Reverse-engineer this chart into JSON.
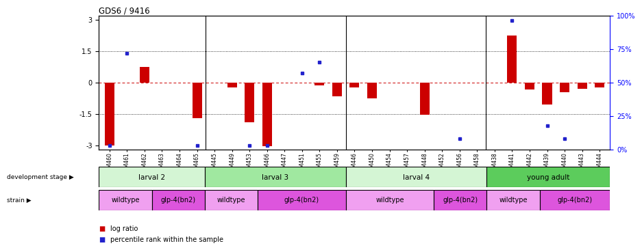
{
  "title": "GDS6 / 9416",
  "samples": [
    "GSM460",
    "GSM461",
    "GSM462",
    "GSM463",
    "GSM464",
    "GSM465",
    "GSM445",
    "GSM449",
    "GSM453",
    "GSM466",
    "GSM447",
    "GSM451",
    "GSM455",
    "GSM459",
    "GSM446",
    "GSM450",
    "GSM454",
    "GSM457",
    "GSM448",
    "GSM452",
    "GSM456",
    "GSM458",
    "GSM438",
    "GSM441",
    "GSM442",
    "GSM439",
    "GSM440",
    "GSM443",
    "GSM444"
  ],
  "log_ratio": [
    -3.0,
    0.0,
    0.75,
    0.0,
    0.0,
    -1.7,
    0.0,
    -0.25,
    -1.9,
    -3.05,
    0.0,
    0.0,
    -0.15,
    -0.65,
    -0.25,
    -0.75,
    0.0,
    0.0,
    -1.55,
    0.0,
    0.0,
    0.0,
    0.0,
    2.25,
    -0.35,
    -1.05,
    -0.45,
    -0.3,
    -0.25
  ],
  "percentile": [
    3,
    72,
    0,
    0,
    0,
    3,
    0,
    0,
    3,
    3,
    0,
    57,
    65,
    0,
    0,
    0,
    0,
    0,
    0,
    0,
    8,
    0,
    0,
    96,
    0,
    18,
    8,
    0,
    0
  ],
  "dev_stages": [
    {
      "label": "larval 2",
      "start": 0,
      "end": 6,
      "color": "#d4f5d4"
    },
    {
      "label": "larval 3",
      "start": 6,
      "end": 14,
      "color": "#a0e8a0"
    },
    {
      "label": "larval 4",
      "start": 14,
      "end": 22,
      "color": "#d4f5d4"
    },
    {
      "label": "young adult",
      "start": 22,
      "end": 29,
      "color": "#5ccc5c"
    }
  ],
  "strains": [
    {
      "label": "wildtype",
      "start": 0,
      "end": 3,
      "color": "#f0a0f0"
    },
    {
      "label": "glp-4(bn2)",
      "start": 3,
      "end": 6,
      "color": "#dd55dd"
    },
    {
      "label": "wildtype",
      "start": 6,
      "end": 9,
      "color": "#f0a0f0"
    },
    {
      "label": "glp-4(bn2)",
      "start": 9,
      "end": 14,
      "color": "#dd55dd"
    },
    {
      "label": "wildtype",
      "start": 14,
      "end": 19,
      "color": "#f0a0f0"
    },
    {
      "label": "glp-4(bn2)",
      "start": 19,
      "end": 22,
      "color": "#dd55dd"
    },
    {
      "label": "wildtype",
      "start": 22,
      "end": 25,
      "color": "#f0a0f0"
    },
    {
      "label": "glp-4(bn2)",
      "start": 25,
      "end": 29,
      "color": "#dd55dd"
    }
  ],
  "ylim": [
    -3.2,
    3.2
  ],
  "yleft_ticks": [
    -3,
    -1.5,
    0,
    1.5,
    3
  ],
  "yleft_labels": [
    "-3",
    "-1.5",
    "0",
    "1.5",
    "3"
  ],
  "y2_ticks": [
    0,
    25,
    50,
    75,
    100
  ],
  "y2_labels": [
    "0%",
    "25%",
    "50%",
    "75%",
    "100%"
  ],
  "bar_color": "#cc0000",
  "dot_color": "#2222cc",
  "zero_line_color": "#cc0000",
  "bg_color": "#ffffff"
}
